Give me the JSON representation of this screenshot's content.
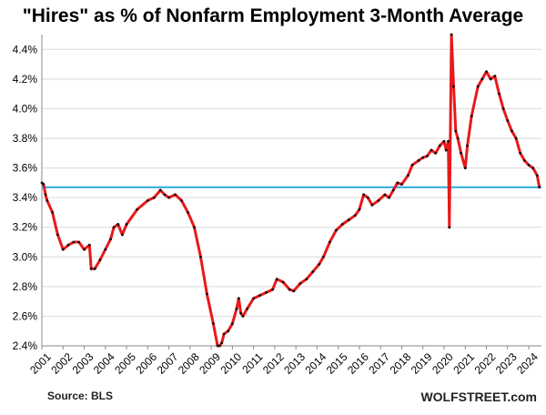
{
  "header": {
    "title": "\"Hires\" as % of Nonfarm Employment 3-Month Average"
  },
  "footer": {
    "source": "Source: BLS",
    "brand": "WOLFSTREET.com"
  },
  "colors": {
    "series": "#e8191a",
    "points": "#111111",
    "reference": "#29aae1",
    "grid": "#d9d9d9"
  },
  "chart_data": {
    "type": "line",
    "title": "\"Hires\" as % of Nonfarm Employment 3-Month Average",
    "xlabel": "",
    "ylabel": "",
    "ylim": [
      2.4,
      4.5
    ],
    "yticks": [
      2.4,
      2.6,
      2.8,
      3.0,
      3.2,
      3.4,
      3.6,
      3.8,
      4.0,
      4.2,
      4.4
    ],
    "ytick_labels": [
      "2.4%",
      "2.6%",
      "2.8%",
      "3.0%",
      "3.2%",
      "3.4%",
      "3.6%",
      "3.8%",
      "4.0%",
      "4.2%",
      "4.4%"
    ],
    "xlim": [
      2001,
      2024.6
    ],
    "x_tick_labels": [
      "2001",
      "2002",
      "2003",
      "2004",
      "2005",
      "2006",
      "2007",
      "2008",
      "2009",
      "2010",
      "2011",
      "2012",
      "2013",
      "2014",
      "2015",
      "2016",
      "2017",
      "2018",
      "2019",
      "2020",
      "2021",
      "2022",
      "2023",
      "2024"
    ],
    "grid": true,
    "reference_line": 3.47,
    "series": [
      {
        "x": [
          2001.0,
          2001.08,
          2001.17,
          2001.25,
          2001.5,
          2001.75,
          2002.0,
          2002.25,
          2002.5,
          2002.75,
          2003.0,
          2003.25,
          2003.33,
          2003.5,
          2003.75,
          2004.0,
          2004.25,
          2004.4,
          2004.6,
          2004.8,
          2005.0,
          2005.5,
          2006.0,
          2006.3,
          2006.6,
          2006.8,
          2007.0,
          2007.3,
          2007.6,
          2007.9,
          2008.2,
          2008.5,
          2008.8,
          2009.1,
          2009.3,
          2009.4,
          2009.5,
          2009.6,
          2009.8,
          2010.0,
          2010.2,
          2010.3,
          2010.4,
          2010.5,
          2010.7,
          2011.0,
          2011.3,
          2011.6,
          2011.9,
          2012.1,
          2012.4,
          2012.7,
          2012.9,
          2013.2,
          2013.5,
          2013.8,
          2014.1,
          2014.3,
          2014.6,
          2014.9,
          2015.2,
          2015.5,
          2015.8,
          2016.0,
          2016.2,
          2016.4,
          2016.6,
          2016.9,
          2017.2,
          2017.4,
          2017.6,
          2017.8,
          2018.0,
          2018.3,
          2018.5,
          2018.8,
          2019.0,
          2019.2,
          2019.4,
          2019.6,
          2019.8,
          2020.0,
          2020.1,
          2020.2,
          2020.25,
          2020.35,
          2020.45,
          2020.55,
          2020.65,
          2020.8,
          2021.0,
          2021.1,
          2021.3,
          2021.6,
          2021.8,
          2022.0,
          2022.2,
          2022.4,
          2022.6,
          2022.8,
          2023.0,
          2023.2,
          2023.4,
          2023.6,
          2023.8,
          2024.0,
          2024.2,
          2024.4,
          2024.5
        ],
        "values": [
          3.5,
          3.49,
          3.42,
          3.38,
          3.3,
          3.15,
          3.05,
          3.08,
          3.1,
          3.1,
          3.05,
          3.08,
          2.92,
          2.92,
          2.98,
          3.05,
          3.12,
          3.2,
          3.22,
          3.15,
          3.22,
          3.32,
          3.38,
          3.4,
          3.45,
          3.42,
          3.4,
          3.42,
          3.38,
          3.3,
          3.2,
          3.0,
          2.75,
          2.55,
          2.4,
          2.35,
          2.42,
          2.48,
          2.5,
          2.55,
          2.65,
          2.72,
          2.62,
          2.6,
          2.65,
          2.72,
          2.74,
          2.76,
          2.78,
          2.85,
          2.83,
          2.78,
          2.77,
          2.82,
          2.85,
          2.9,
          2.95,
          3.0,
          3.1,
          3.18,
          3.22,
          3.25,
          3.28,
          3.32,
          3.42,
          3.4,
          3.35,
          3.38,
          3.42,
          3.4,
          3.45,
          3.5,
          3.49,
          3.55,
          3.62,
          3.65,
          3.67,
          3.68,
          3.72,
          3.7,
          3.75,
          3.78,
          3.72,
          3.78,
          3.2,
          4.5,
          4.15,
          3.85,
          3.8,
          3.7,
          3.6,
          3.75,
          3.95,
          4.15,
          4.2,
          4.25,
          4.2,
          4.22,
          4.1,
          4.0,
          3.92,
          3.85,
          3.8,
          3.7,
          3.65,
          3.62,
          3.6,
          3.55,
          3.47
        ]
      }
    ]
  }
}
